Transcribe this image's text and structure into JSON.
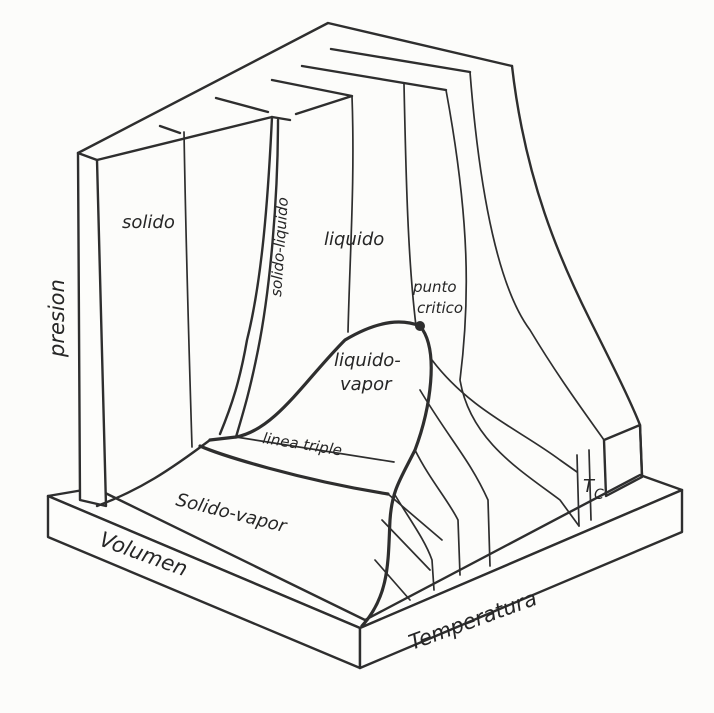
{
  "labels": {
    "solid": "solido",
    "solid_liquid": "solido-liquido",
    "liquid": "liquido",
    "critical_point_line1": "punto",
    "critical_point_line2": "critico",
    "liquid_vapor_line1": "liquido-",
    "liquid_vapor_line2": "vapor",
    "triple_line": "linea triple",
    "solid_vapor": "Solido-vapor",
    "critical_temperature": "T",
    "critical_temperature_sub": "C"
  },
  "axes": {
    "pressure": "presion",
    "volume": "Volumen",
    "temperature": "Temperatura"
  },
  "colors": {
    "ink": "#2e2e2e",
    "paper": "#fcfcfa"
  }
}
